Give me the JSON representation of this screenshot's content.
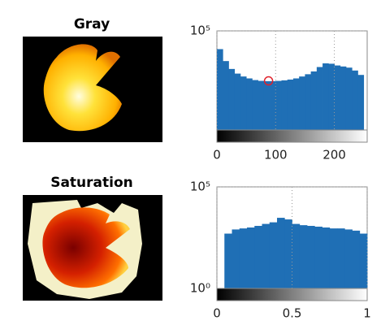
{
  "chart_data": [
    {
      "type": "histogram",
      "title": "Gray",
      "bins": [
        0,
        10,
        20,
        30,
        40,
        50,
        60,
        70,
        80,
        90,
        100,
        110,
        120,
        130,
        140,
        150,
        160,
        170,
        180,
        190,
        200,
        210,
        220,
        230,
        240,
        250
      ],
      "values": [
        12000,
        3000,
        1200,
        700,
        500,
        400,
        330,
        300,
        290,
        290,
        300,
        320,
        350,
        400,
        500,
        650,
        900,
        1500,
        2300,
        2200,
        1800,
        1600,
        1400,
        1000,
        600
      ],
      "color": "#1f6fb5",
      "log_y": true,
      "xlim": [
        0,
        256
      ],
      "xticks": [
        0,
        100,
        200
      ],
      "ylim": [
        1,
        100000
      ],
      "yticks": [
        {
          "value": 100000,
          "label": "10⁵"
        }
      ],
      "grid": true,
      "marker": {
        "x": 88,
        "y": 300,
        "color": "#e0202a"
      }
    },
    {
      "type": "histogram",
      "title": "Saturation",
      "bins": [
        0,
        0.05,
        0.1,
        0.15,
        0.2,
        0.25,
        0.3,
        0.35,
        0.4,
        0.45,
        0.5,
        0.55,
        0.6,
        0.65,
        0.7,
        0.75,
        0.8,
        0.85,
        0.9,
        0.95,
        1
      ],
      "values": [
        1,
        500,
        800,
        900,
        1000,
        1200,
        1500,
        1800,
        3000,
        2500,
        1500,
        1300,
        1200,
        1100,
        1000,
        900,
        900,
        800,
        700,
        500
      ],
      "color": "#1f6fb5",
      "log_y": true,
      "xlim": [
        0,
        1
      ],
      "xticks": [
        0,
        0.5,
        1
      ],
      "ylim": [
        1,
        100000
      ],
      "yticks": [
        {
          "value": 1,
          "label": "10⁰"
        },
        {
          "value": 100000,
          "label": "10⁵"
        }
      ],
      "grid": true
    }
  ]
}
